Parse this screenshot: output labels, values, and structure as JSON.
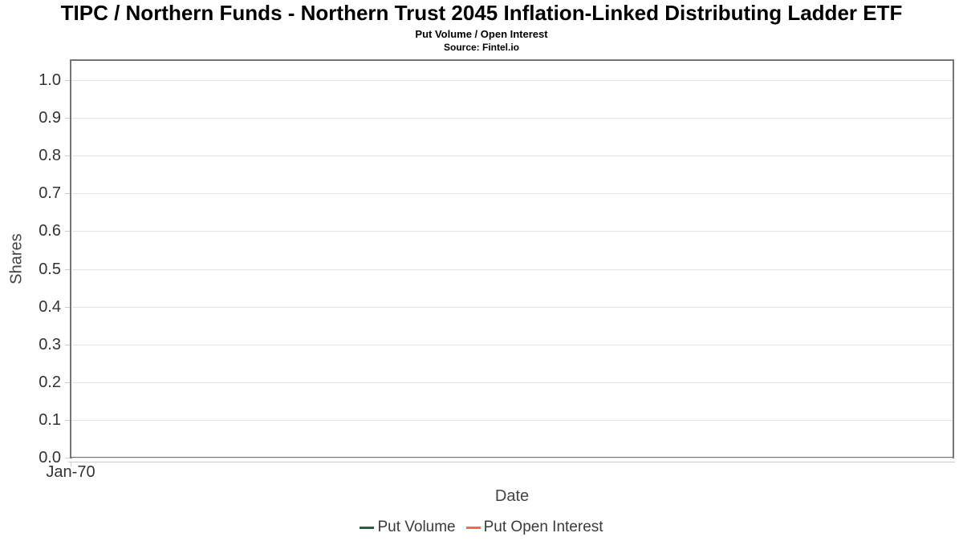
{
  "chart_data": {
    "type": "line",
    "title": "TIPC / Northern Funds - Northern Trust 2045 Inflation-Linked Distributing Ladder ETF",
    "subtitle": "Put Volume / Open Interest",
    "source": "Source: Fintel.io",
    "xlabel": "Date",
    "ylabel": "Shares",
    "x_tick_labels": [
      "Jan-70"
    ],
    "y_tick_labels": [
      "0.0",
      "0.1",
      "0.2",
      "0.3",
      "0.4",
      "0.5",
      "0.6",
      "0.7",
      "0.8",
      "0.9",
      "1.0"
    ],
    "y_tick_values": [
      0,
      0.1,
      0.2,
      0.3,
      0.4,
      0.5,
      0.6,
      0.7,
      0.8,
      0.9,
      1.0
    ],
    "ylim": [
      0,
      1.05
    ],
    "grid": true,
    "legend_position": "bottom",
    "plot_is_empty": true,
    "colors": {
      "grid": "#e4e4e4",
      "axis": "#cccccc",
      "plot_border": "#757575"
    },
    "series": [
      {
        "name": "Put Volume",
        "color": "#2e5c41",
        "x": [],
        "values": []
      },
      {
        "name": "Put Open Interest",
        "color": "#f9665e",
        "x": [],
        "values": []
      }
    ]
  }
}
